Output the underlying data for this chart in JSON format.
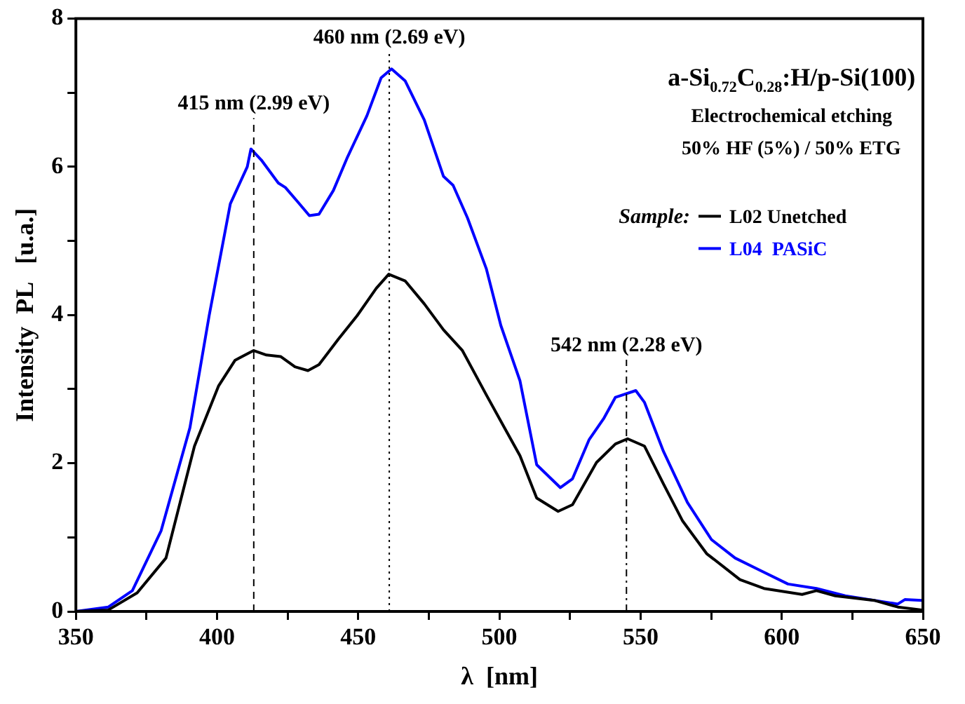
{
  "chart_data": {
    "type": "line",
    "xlabel": "λ  [nm]",
    "ylabel": "Intensity  PL   [u.a.]",
    "xlim": [
      350,
      650
    ],
    "xticks": [
      350,
      {
        "value": 375,
        "label": null
      },
      400,
      {
        "value": 425,
        "label": null
      },
      450,
      {
        "value": 475,
        "label": null
      },
      500,
      {
        "value": 525,
        "label": null
      },
      550,
      {
        "value": 575,
        "label": null
      },
      600,
      {
        "value": 625,
        "label": null
      },
      650
    ],
    "ylim": [
      0,
      8
    ],
    "yticks": [
      0,
      {
        "value": 1,
        "label": null
      },
      2,
      {
        "value": 3,
        "label": null
      },
      4,
      {
        "value": 5,
        "label": null
      },
      6,
      {
        "value": 7,
        "label": null
      },
      8
    ],
    "grid": false,
    "legend": "top right",
    "legend_title": "Sample:",
    "marker": "none",
    "line_style": "solid",
    "annotations": [
      "a-Si$_{0.72}$C$_{0.28}$:H/p-Si(100)",
      "Electrochemical etching",
      "50% HF (5%) / 50% ETG"
    ],
    "ref_lines": [
      {
        "axis": "x",
        "value": 413,
        "label": "415 nm (2.99 eV)",
        "line_style": "dashed",
        "color": "#000000"
      },
      {
        "axis": "x",
        "value": 461,
        "label": "460 nm (2.69 eV)",
        "line_style": "dotted",
        "color": "#000000"
      },
      {
        "axis": "x",
        "value": 545,
        "label": "542 nm (2.28 eV)",
        "line_style": "dashdot",
        "color": "#000000"
      }
    ],
    "series": [
      {
        "name": "L02 Unetched",
        "color": "#000000",
        "x": [
          350,
          361.5,
          371.7,
          381.9,
          392,
          400.5,
          406.4,
          412.9,
          417.5,
          422.5,
          427.6,
          432.2,
          436.1,
          442.9,
          449.6,
          456.4,
          460.8,
          466.6,
          473.4,
          480.2,
          486.9,
          495.4,
          502.2,
          507.3,
          513.2,
          520.8,
          525.9,
          534.4,
          541.1,
          545.4,
          551.4,
          558.1,
          564.9,
          573.4,
          585.2,
          593.7,
          607.2,
          612.3,
          619,
          632.7,
          641.1,
          649.6
        ],
        "values": [
          0,
          0.02,
          0.25,
          0.72,
          2.23,
          3.04,
          3.39,
          3.52,
          3.46,
          3.44,
          3.3,
          3.25,
          3.33,
          3.67,
          3.99,
          4.36,
          4.55,
          4.46,
          4.15,
          3.8,
          3.52,
          2.92,
          2.45,
          2.1,
          1.53,
          1.35,
          1.44,
          2.01,
          2.26,
          2.33,
          2.23,
          1.72,
          1.22,
          0.78,
          0.43,
          0.31,
          0.23,
          0.28,
          0.21,
          0.15,
          0.06,
          0.02
        ]
      },
      {
        "name": "L04  PASiC",
        "color": "#0000ff",
        "x": [
          350,
          361.5,
          370,
          380.2,
          390.4,
          397.2,
          404.7,
          410.7,
          412,
          415.7,
          421.7,
          424.2,
          428.5,
          432.7,
          436.1,
          441.2,
          446.2,
          453.1,
          458.1,
          461.8,
          466.6,
          473.4,
          480.2,
          483.6,
          488.7,
          495.4,
          500.5,
          507.3,
          513.2,
          521.6,
          525.9,
          531.8,
          536.9,
          541.1,
          548.3,
          551.4,
          558.1,
          566.6,
          575.1,
          583.5,
          592,
          602.2,
          612.3,
          622.5,
          632.7,
          641.1,
          643.6,
          649.6
        ],
        "values": [
          0,
          0.06,
          0.28,
          1.09,
          2.48,
          3.99,
          5.5,
          6.0,
          6.24,
          6.09,
          5.78,
          5.72,
          5.53,
          5.34,
          5.36,
          5.68,
          6.13,
          6.69,
          7.2,
          7.32,
          7.16,
          6.63,
          5.87,
          5.75,
          5.31,
          4.62,
          3.86,
          3.11,
          1.98,
          1.67,
          1.79,
          2.32,
          2.6,
          2.89,
          2.98,
          2.82,
          2.16,
          1.47,
          0.97,
          0.72,
          0.56,
          0.37,
          0.31,
          0.21,
          0.15,
          0.1,
          0.16,
          0.15
        ]
      }
    ]
  }
}
